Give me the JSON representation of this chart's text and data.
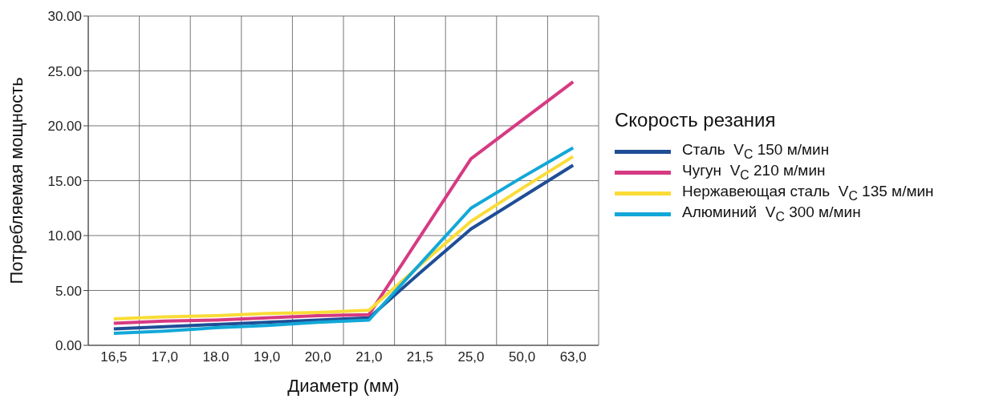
{
  "chart_data": {
    "type": "line",
    "xlabel": "Диаметр (мм)",
    "ylabel": "Потребляемая мощность",
    "legend_title": "Скорость резания",
    "legend": "right",
    "grid": true,
    "marker": "none",
    "line_style": "solid",
    "categories": [
      "16,5",
      "17,0",
      "18.0",
      "19,0",
      "20,0",
      "21,0",
      "21,5",
      "25,0",
      "50,0",
      "63,0"
    ],
    "ylim": [
      0,
      30
    ],
    "yticks": [
      {
        "value": 0,
        "label": "0.00"
      },
      {
        "value": 5,
        "label": "5.00"
      },
      {
        "value": 10,
        "label": "10.00"
      },
      {
        "value": 15,
        "label": "15.00"
      },
      {
        "value": 20,
        "label": "20.00"
      },
      {
        "value": 25,
        "label": "25.00"
      },
      {
        "value": 30,
        "label": "30.00"
      }
    ],
    "series": [
      {
        "name": "Сталь  V$_{C}$ 150 м/мин",
        "color": "#1f4e96",
        "values": [
          1.5,
          1.7,
          1.9,
          2.1,
          2.3,
          2.5,
          6.6,
          10.6,
          13.5,
          16.4
        ]
      },
      {
        "name": "Чугун  V$_{C}$ 210 м/мин",
        "color": "#d63a82",
        "values": [
          2.0,
          2.2,
          2.3,
          2.5,
          2.7,
          2.8,
          9.9,
          17.0,
          20.5,
          24.0
        ]
      },
      {
        "name": "Нержавеющая сталь  V$_{C}$ 135 м/мин",
        "color": "#f9dc38",
        "values": [
          2.4,
          2.6,
          2.7,
          2.9,
          3.0,
          3.2,
          7.3,
          11.3,
          14.3,
          17.2
        ]
      },
      {
        "name": "Алюминий  V$_{C}$ 300 м/мин",
        "color": "#12a8d8",
        "values": [
          1.1,
          1.3,
          1.6,
          1.8,
          2.1,
          2.3,
          7.4,
          12.5,
          15.3,
          18.0
        ]
      }
    ]
  }
}
